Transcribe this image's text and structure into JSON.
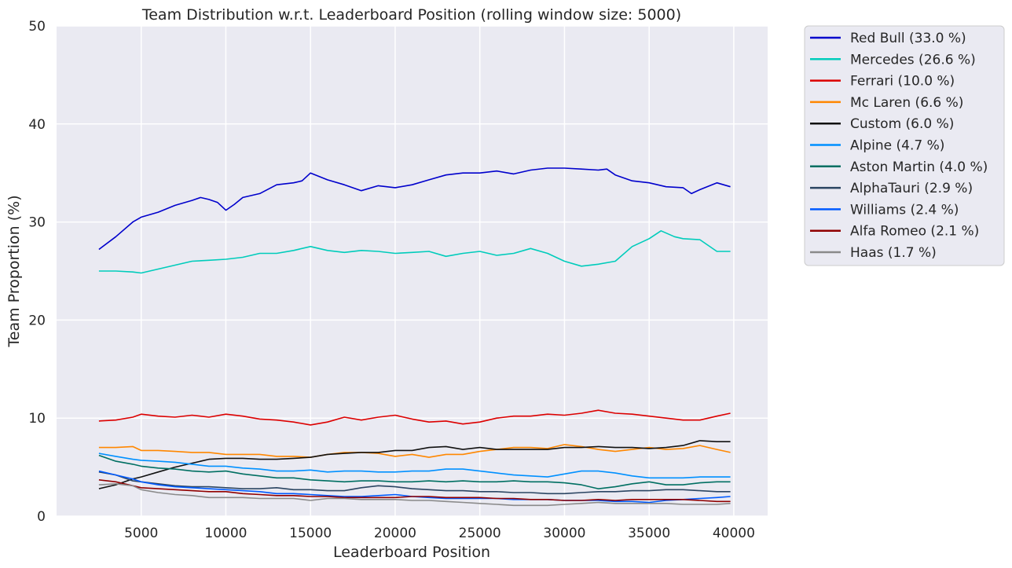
{
  "chart_data": {
    "type": "line",
    "title": "Team Distribution w.r.t. Leaderboard Position (rolling window size: 5000)",
    "xlabel": "Leaderboard Position",
    "ylabel": "Team Proportion (%)",
    "xlim": [
      0,
      42000
    ],
    "ylim": [
      0,
      50
    ],
    "xticks": [
      5000,
      10000,
      15000,
      20000,
      25000,
      30000,
      35000,
      40000
    ],
    "xtick_labels": [
      "5000",
      "10000",
      "15000",
      "20000",
      "25000",
      "30000",
      "35000",
      "40000"
    ],
    "yticks": [
      0,
      10,
      20,
      30,
      40,
      50
    ],
    "ytick_labels": [
      "0",
      "10",
      "20",
      "30",
      "40",
      "50"
    ],
    "grid": true,
    "legend_position": "outside-right-top",
    "background": "#EAEAF2",
    "series": [
      {
        "name": "Red Bull (33.0 %)",
        "color": "#0000CC",
        "x": [
          2500,
          3500,
          4500,
          5000,
          6000,
          7000,
          8000,
          8500,
          9000,
          9500,
          10000,
          10500,
          11000,
          12000,
          13000,
          14000,
          14500,
          15000,
          16000,
          17000,
          18000,
          19000,
          20000,
          21000,
          22000,
          23000,
          24000,
          25000,
          26000,
          27000,
          28000,
          29000,
          30000,
          31000,
          32000,
          32500,
          33000,
          34000,
          35000,
          36000,
          37000,
          37500,
          38000,
          39000,
          39800
        ],
        "y": [
          27.2,
          28.5,
          30,
          30.5,
          31,
          31.7,
          32.2,
          32.5,
          32.3,
          32,
          31.2,
          31.8,
          32.5,
          32.9,
          33.8,
          34,
          34.2,
          35,
          34.3,
          33.8,
          33.2,
          33.7,
          33.5,
          33.8,
          34.3,
          34.8,
          35,
          35,
          35.2,
          34.9,
          35.3,
          35.5,
          35.5,
          35.4,
          35.3,
          35.4,
          34.8,
          34.2,
          34,
          33.6,
          33.5,
          32.9,
          33.3,
          34,
          33.6
        ]
      },
      {
        "name": "Mercedes (26.6 %)",
        "color": "#00CCBB",
        "x": [
          2500,
          3500,
          4500,
          5000,
          6000,
          7000,
          8000,
          9000,
          10000,
          11000,
          12000,
          13000,
          14000,
          15000,
          16000,
          17000,
          18000,
          19000,
          20000,
          21000,
          22000,
          23000,
          24000,
          25000,
          26000,
          27000,
          28000,
          29000,
          30000,
          31000,
          32000,
          33000,
          34000,
          35000,
          35700,
          36500,
          37000,
          38000,
          39000,
          39800
        ],
        "y": [
          25,
          25,
          24.9,
          24.8,
          25.2,
          25.6,
          26,
          26.1,
          26.2,
          26.4,
          26.8,
          26.8,
          27.1,
          27.5,
          27.1,
          26.9,
          27.1,
          27,
          26.8,
          26.9,
          27,
          26.5,
          26.8,
          27,
          26.6,
          26.8,
          27.3,
          26.8,
          26,
          25.5,
          25.7,
          26,
          27.5,
          28.3,
          29.1,
          28.5,
          28.3,
          28.2,
          27,
          27
        ]
      },
      {
        "name": "Ferrari (10.0 %)",
        "color": "#DC0000",
        "x": [
          2500,
          3500,
          4500,
          5000,
          6000,
          7000,
          8000,
          9000,
          10000,
          11000,
          12000,
          13000,
          14000,
          15000,
          16000,
          17000,
          18000,
          19000,
          20000,
          21000,
          22000,
          23000,
          24000,
          25000,
          26000,
          27000,
          28000,
          29000,
          30000,
          31000,
          32000,
          33000,
          34000,
          35000,
          36000,
          37000,
          38000,
          39000,
          39800
        ],
        "y": [
          9.7,
          9.8,
          10.1,
          10.4,
          10.2,
          10.1,
          10.3,
          10.1,
          10.4,
          10.2,
          9.9,
          9.8,
          9.6,
          9.3,
          9.6,
          10.1,
          9.8,
          10.1,
          10.3,
          9.9,
          9.6,
          9.7,
          9.4,
          9.6,
          10,
          10.2,
          10.2,
          10.4,
          10.3,
          10.5,
          10.8,
          10.5,
          10.4,
          10.2,
          10,
          9.8,
          9.8,
          10.2,
          10.5
        ]
      },
      {
        "name": "Mc Laren (6.6 %)",
        "color": "#FF8700",
        "x": [
          2500,
          3500,
          4500,
          5000,
          6000,
          7000,
          8000,
          9000,
          10000,
          11000,
          12000,
          13000,
          14000,
          15000,
          16000,
          17000,
          18000,
          19000,
          20000,
          21000,
          22000,
          23000,
          24000,
          25000,
          26000,
          27000,
          28000,
          29000,
          30000,
          31000,
          32000,
          33000,
          34000,
          35000,
          36000,
          37000,
          38000,
          39000,
          39800
        ],
        "y": [
          7,
          7,
          7.1,
          6.7,
          6.7,
          6.6,
          6.5,
          6.5,
          6.3,
          6.3,
          6.3,
          6.1,
          6.1,
          6,
          6.3,
          6.5,
          6.5,
          6.4,
          6.1,
          6.3,
          6,
          6.3,
          6.3,
          6.6,
          6.8,
          7,
          7,
          6.9,
          7.3,
          7.1,
          6.8,
          6.6,
          6.8,
          7,
          6.8,
          6.9,
          7.2,
          6.8,
          6.5
        ]
      },
      {
        "name": "Custom (6.0 %)",
        "color": "#111111",
        "x": [
          2500,
          3500,
          4500,
          5000,
          6000,
          7000,
          8000,
          9000,
          10000,
          11000,
          12000,
          13000,
          14000,
          15000,
          16000,
          17000,
          18000,
          19000,
          20000,
          21000,
          22000,
          23000,
          24000,
          25000,
          26000,
          27000,
          28000,
          29000,
          30000,
          31000,
          32000,
          33000,
          34000,
          35000,
          36000,
          37000,
          38000,
          39000,
          39800
        ],
        "y": [
          2.8,
          3.2,
          3.8,
          4,
          4.5,
          5,
          5.4,
          5.8,
          5.9,
          5.9,
          5.8,
          5.8,
          5.9,
          6,
          6.3,
          6.4,
          6.5,
          6.5,
          6.7,
          6.7,
          7,
          7.1,
          6.8,
          7,
          6.8,
          6.8,
          6.8,
          6.8,
          7,
          7,
          7.1,
          7,
          7,
          6.9,
          7,
          7.2,
          7.7,
          7.6,
          7.6
        ]
      },
      {
        "name": "Alpine (4.7 %)",
        "color": "#0090FF",
        "x": [
          2500,
          3500,
          4500,
          5000,
          6000,
          7000,
          8000,
          9000,
          10000,
          11000,
          12000,
          13000,
          14000,
          15000,
          16000,
          17000,
          18000,
          19000,
          20000,
          21000,
          22000,
          23000,
          24000,
          25000,
          26000,
          27000,
          28000,
          29000,
          30000,
          31000,
          32000,
          33000,
          34000,
          35000,
          36000,
          37000,
          38000,
          39000,
          39800
        ],
        "y": [
          6.4,
          6.1,
          5.8,
          5.7,
          5.6,
          5.5,
          5.3,
          5.1,
          5.1,
          4.9,
          4.8,
          4.6,
          4.6,
          4.7,
          4.5,
          4.6,
          4.6,
          4.5,
          4.5,
          4.6,
          4.6,
          4.8,
          4.8,
          4.6,
          4.4,
          4.2,
          4.1,
          4,
          4.3,
          4.6,
          4.6,
          4.4,
          4.1,
          3.9,
          3.9,
          3.9,
          4,
          4,
          4
        ]
      },
      {
        "name": "Aston Martin (4.0 %)",
        "color": "#006F62",
        "x": [
          2500,
          3500,
          4500,
          5000,
          6000,
          7000,
          8000,
          9000,
          10000,
          11000,
          12000,
          13000,
          14000,
          15000,
          16000,
          17000,
          18000,
          19000,
          20000,
          21000,
          22000,
          23000,
          24000,
          25000,
          26000,
          27000,
          28000,
          29000,
          30000,
          31000,
          32000,
          33000,
          34000,
          35000,
          36000,
          37000,
          38000,
          39000,
          39800
        ],
        "y": [
          6.2,
          5.6,
          5.3,
          5.1,
          4.9,
          4.8,
          4.6,
          4.5,
          4.6,
          4.3,
          4.1,
          3.9,
          3.9,
          3.7,
          3.6,
          3.5,
          3.6,
          3.6,
          3.5,
          3.5,
          3.6,
          3.5,
          3.6,
          3.5,
          3.5,
          3.6,
          3.5,
          3.5,
          3.4,
          3.2,
          2.8,
          3,
          3.3,
          3.5,
          3.2,
          3.2,
          3.4,
          3.5,
          3.5
        ]
      },
      {
        "name": "AlphaTauri (2.9 %)",
        "color": "#2B4562",
        "x": [
          2500,
          3500,
          4500,
          5000,
          6000,
          7000,
          8000,
          9000,
          10000,
          11000,
          12000,
          13000,
          14000,
          15000,
          16000,
          17000,
          18000,
          19000,
          20000,
          21000,
          22000,
          23000,
          24000,
          25000,
          26000,
          27000,
          28000,
          29000,
          30000,
          31000,
          32000,
          33000,
          34000,
          35000,
          36000,
          37000,
          38000,
          39000,
          39800
        ],
        "y": [
          4.5,
          4.2,
          3.6,
          3.5,
          3.3,
          3.1,
          3,
          3,
          2.9,
          2.8,
          2.8,
          2.9,
          2.7,
          2.7,
          2.6,
          2.6,
          2.9,
          3.1,
          3,
          2.8,
          2.7,
          2.6,
          2.6,
          2.5,
          2.5,
          2.4,
          2.4,
          2.3,
          2.3,
          2.4,
          2.5,
          2.5,
          2.6,
          2.6,
          2.7,
          2.7,
          2.6,
          2.5,
          2.5
        ]
      },
      {
        "name": "Williams (2.4 %)",
        "color": "#005AFF",
        "x": [
          2500,
          3500,
          4500,
          5000,
          6000,
          7000,
          8000,
          9000,
          10000,
          11000,
          12000,
          13000,
          14000,
          15000,
          16000,
          17000,
          18000,
          19000,
          20000,
          21000,
          22000,
          23000,
          24000,
          25000,
          26000,
          27000,
          28000,
          29000,
          30000,
          31000,
          32000,
          33000,
          34000,
          35000,
          36000,
          37000,
          38000,
          39000,
          39800
        ],
        "y": [
          4.6,
          4.2,
          3.8,
          3.5,
          3.2,
          3,
          2.9,
          2.8,
          2.7,
          2.6,
          2.5,
          2.3,
          2.3,
          2.2,
          2.1,
          2,
          2,
          2.1,
          2.2,
          2,
          1.9,
          1.8,
          1.8,
          1.8,
          1.8,
          1.7,
          1.7,
          1.7,
          1.6,
          1.6,
          1.6,
          1.5,
          1.5,
          1.4,
          1.6,
          1.7,
          1.8,
          1.9,
          2
        ]
      },
      {
        "name": "Alfa Romeo (2.1 %)",
        "color": "#900000",
        "x": [
          2500,
          3500,
          4500,
          5000,
          6000,
          7000,
          8000,
          9000,
          10000,
          11000,
          12000,
          13000,
          14000,
          15000,
          16000,
          17000,
          18000,
          19000,
          20000,
          21000,
          22000,
          23000,
          24000,
          25000,
          26000,
          27000,
          28000,
          29000,
          30000,
          31000,
          32000,
          33000,
          34000,
          35000,
          36000,
          37000,
          38000,
          39000,
          39800
        ],
        "y": [
          3.7,
          3.5,
          3.1,
          2.9,
          2.8,
          2.7,
          2.6,
          2.5,
          2.5,
          2.3,
          2.2,
          2.1,
          2.1,
          2,
          2,
          1.9,
          1.9,
          1.9,
          1.9,
          2,
          2,
          1.9,
          1.9,
          1.9,
          1.8,
          1.8,
          1.7,
          1.7,
          1.6,
          1.6,
          1.7,
          1.6,
          1.7,
          1.7,
          1.7,
          1.7,
          1.6,
          1.5,
          1.5
        ]
      },
      {
        "name": "Haas (1.7 %)",
        "color": "#8A8A8A",
        "x": [
          2500,
          3500,
          4500,
          5000,
          6000,
          7000,
          8000,
          9000,
          10000,
          11000,
          12000,
          13000,
          14000,
          15000,
          16000,
          17000,
          18000,
          19000,
          20000,
          21000,
          22000,
          23000,
          24000,
          25000,
          26000,
          27000,
          28000,
          29000,
          30000,
          31000,
          32000,
          33000,
          34000,
          35000,
          36000,
          37000,
          38000,
          39000,
          39800
        ],
        "y": [
          3.2,
          3.3,
          3.1,
          2.7,
          2.4,
          2.2,
          2.1,
          1.9,
          1.9,
          1.9,
          1.8,
          1.8,
          1.8,
          1.6,
          1.8,
          1.8,
          1.7,
          1.7,
          1.7,
          1.6,
          1.6,
          1.5,
          1.4,
          1.3,
          1.2,
          1.1,
          1.1,
          1.1,
          1.2,
          1.3,
          1.4,
          1.3,
          1.3,
          1.3,
          1.3,
          1.2,
          1.2,
          1.2,
          1.3
        ]
      }
    ]
  }
}
